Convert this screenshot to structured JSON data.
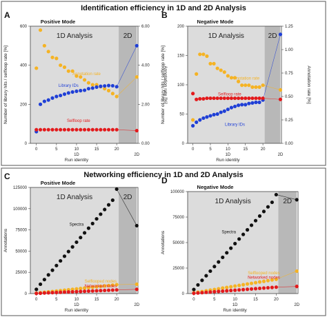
{
  "section_top": {
    "title": "Identification efficiency in 1D and 2D Analysis"
  },
  "section_bottom": {
    "title": "Networking efficiency in 1D and 2D Analysis"
  },
  "colors": {
    "orange": "#f5b324",
    "blue": "#1f3fd6",
    "red": "#e31a1c",
    "black": "#111111",
    "region_1d": "#dcdcdc",
    "region_2d": "#b8b8b8"
  },
  "chart_data": [
    {
      "letter": "A",
      "title": "Positive Mode",
      "type": "scatter",
      "x_ticks": [
        0,
        5,
        10,
        15,
        20
      ],
      "x_sublabels": [
        "1D",
        "2D"
      ],
      "xlabel": "Run identity",
      "ylabel": "Number of library hits / selfloop rate [%]",
      "y2label": "Annotation rate [%]",
      "ylim": [
        0,
        600
      ],
      "y_ticks": [
        0,
        200,
        400,
        600
      ],
      "y2lim": [
        0,
        6
      ],
      "y2_ticks": [
        "0.00",
        "2.00",
        "4.00",
        "6.00"
      ],
      "regions": [
        {
          "label": "1D Analysis",
          "x_from": -1.5,
          "x_to": 20.5
        },
        {
          "label": "2D",
          "x_from": 20.5,
          "x_to": 25
        }
      ],
      "series": [
        {
          "name": "Annotation rate",
          "axis": "right",
          "color": "orange",
          "x": [
            0,
            1,
            2,
            3,
            4,
            5,
            6,
            7,
            8,
            9,
            10,
            11,
            12,
            13,
            14,
            15,
            16,
            17,
            18,
            19,
            20,
            25
          ],
          "y": [
            3.85,
            5.8,
            5.0,
            4.7,
            4.4,
            4.35,
            4.0,
            3.9,
            3.7,
            3.7,
            3.45,
            3.4,
            3.25,
            3.1,
            3.0,
            3.0,
            2.9,
            2.8,
            2.7,
            2.55,
            2.4,
            3.4
          ],
          "label": {
            "x": 12.5,
            "y": 3.5
          }
        },
        {
          "name": "Library IDs",
          "axis": "left",
          "color": "blue",
          "x": [
            0,
            1,
            2,
            3,
            4,
            5,
            6,
            7,
            8,
            9,
            10,
            11,
            12,
            13,
            14,
            15,
            16,
            17,
            18,
            19,
            20,
            25
          ],
          "y": [
            60,
            200,
            215,
            222,
            232,
            240,
            245,
            252,
            258,
            263,
            267,
            270,
            272,
            280,
            283,
            288,
            292,
            294,
            296,
            295,
            290,
            500
          ],
          "label": {
            "x": 8,
            "y": 290
          }
        },
        {
          "name": "Selfloop rate",
          "axis": "left",
          "color": "red",
          "x": [
            0,
            1,
            2,
            3,
            4,
            5,
            6,
            7,
            8,
            9,
            10,
            11,
            12,
            13,
            14,
            15,
            16,
            17,
            18,
            19,
            20,
            25
          ],
          "y": [
            70,
            70,
            70,
            70,
            70,
            70,
            70,
            70,
            70,
            70,
            70,
            70,
            70,
            70,
            70,
            70,
            70,
            70,
            70,
            70,
            70,
            65
          ],
          "label": {
            "x": 10.5,
            "y": 110
          }
        }
      ]
    },
    {
      "letter": "B",
      "title": "Negative Mode",
      "type": "scatter",
      "x_ticks": [
        0,
        5,
        10,
        15,
        20
      ],
      "x_sublabels": [
        "1D",
        "2D"
      ],
      "xlabel": "Run identity",
      "ylabel": "Number of library hits / selfloop rate [%]",
      "y2label": "Annotation rate [%]",
      "ylim": [
        0,
        200
      ],
      "y_ticks": [
        0,
        50,
        100,
        150,
        200
      ],
      "y2lim": [
        0,
        1.25
      ],
      "y2_ticks": [
        "0.00",
        "0.25",
        "0.50",
        "0.75",
        "1.00",
        "1.25"
      ],
      "regions": [
        {
          "label": "1D Analysis",
          "x_from": -1.5,
          "x_to": 20.5
        },
        {
          "label": "2D",
          "x_from": 20.5,
          "x_to": 25
        }
      ],
      "series": [
        {
          "name": "Annotation rate",
          "axis": "right",
          "color": "orange",
          "x": [
            0,
            1,
            2,
            3,
            4,
            5,
            6,
            7,
            8,
            9,
            10,
            11,
            12,
            13,
            14,
            15,
            16,
            17,
            18,
            19,
            20,
            25
          ],
          "y": [
            0.25,
            0.74,
            0.95,
            0.95,
            0.93,
            0.85,
            0.85,
            0.8,
            0.78,
            0.76,
            0.72,
            0.7,
            0.7,
            0.66,
            0.62,
            0.62,
            0.62,
            0.6,
            0.6,
            0.6,
            0.62,
            0.57
          ],
          "label": {
            "x": 15,
            "y": 0.68
          }
        },
        {
          "name": "Library IDs",
          "axis": "left",
          "color": "blue",
          "x": [
            0,
            1,
            2,
            3,
            4,
            5,
            6,
            7,
            8,
            9,
            10,
            11,
            12,
            13,
            14,
            15,
            16,
            17,
            18,
            19,
            20,
            25
          ],
          "y": [
            30,
            36,
            40,
            43,
            45,
            47,
            49,
            50,
            53,
            55,
            58,
            61,
            63,
            65,
            66,
            66,
            68,
            69,
            70,
            70,
            74,
            186
          ],
          "label": {
            "x": 12,
            "y": 30
          }
        },
        {
          "name": "Selfloop rate",
          "axis": "left",
          "color": "red",
          "x": [
            0,
            1,
            2,
            3,
            4,
            5,
            6,
            7,
            8,
            9,
            10,
            11,
            12,
            13,
            14,
            15,
            16,
            17,
            18,
            19,
            20,
            25
          ],
          "y": [
            85,
            75,
            76,
            76,
            77,
            77,
            77,
            77,
            77,
            77,
            77,
            77,
            77,
            77,
            77,
            77,
            77,
            77,
            77,
            77,
            77,
            75
          ],
          "label": {
            "x": 10.5,
            "y": 82
          }
        }
      ]
    },
    {
      "letter": "C",
      "title": "Positive Mode",
      "type": "scatter",
      "x_ticks": [
        0,
        5,
        10,
        15,
        20
      ],
      "x_sublabels": [
        "1D",
        "2D"
      ],
      "xlabel": "Run identity",
      "ylabel": "Annotations",
      "ylim": [
        0,
        125000
      ],
      "y_ticks": [
        0,
        25000,
        50000,
        75000,
        100000,
        125000
      ],
      "y_tick_labels": [
        "0",
        "25000",
        "50000",
        "75000",
        "100000",
        "125000"
      ],
      "regions": [
        {
          "label": "1D Analysis",
          "x_from": -1.5,
          "x_to": 20.5
        },
        {
          "label": "2D",
          "x_from": 20.5,
          "x_to": 25
        }
      ],
      "series": [
        {
          "name": "Spectra",
          "color": "black",
          "x": [
            0,
            1,
            2,
            3,
            4,
            5,
            6,
            7,
            8,
            9,
            10,
            11,
            12,
            13,
            14,
            15,
            16,
            17,
            18,
            19,
            20,
            25
          ],
          "y": [
            5000,
            11000,
            16500,
            22000,
            27500,
            33000,
            38500,
            44000,
            49500,
            55000,
            60500,
            66000,
            71500,
            77000,
            82500,
            88000,
            93500,
            99000,
            104500,
            110000,
            123000,
            80000
          ],
          "label": {
            "x": 10,
            "y": 80000
          }
        },
        {
          "name": "Selflooped nodes",
          "color": "orange",
          "x": [
            0,
            1,
            2,
            3,
            4,
            5,
            6,
            7,
            8,
            9,
            10,
            11,
            12,
            13,
            14,
            15,
            16,
            17,
            18,
            19,
            20,
            25
          ],
          "y": [
            500,
            1000,
            1500,
            2000,
            2500,
            3000,
            3500,
            4000,
            4500,
            5000,
            5500,
            6000,
            6500,
            7000,
            7500,
            8000,
            8500,
            9000,
            9500,
            10000,
            10500,
            11000
          ],
          "label": {
            "x": 16,
            "y": 13000
          }
        },
        {
          "name": "Networked nodes",
          "color": "red",
          "x": [
            0,
            1,
            2,
            3,
            4,
            5,
            6,
            7,
            8,
            9,
            10,
            11,
            12,
            13,
            14,
            15,
            16,
            17,
            18,
            19,
            20,
            25
          ],
          "y": [
            200,
            400,
            700,
            900,
            1100,
            1300,
            1500,
            1700,
            1900,
            2100,
            2300,
            2500,
            2700,
            2900,
            3100,
            3300,
            3500,
            3700,
            3900,
            4100,
            4300,
            5000
          ],
          "label": {
            "x": 16,
            "y": 7500
          }
        }
      ]
    },
    {
      "letter": "D",
      "title": "Negative Mode",
      "type": "scatter",
      "x_ticks": [
        0,
        5,
        10,
        15,
        20
      ],
      "x_sublabels": [
        "1D",
        "2D"
      ],
      "xlabel": "Run identity",
      "ylabel": "Annotations",
      "ylim": [
        0,
        100000
      ],
      "y_ticks": [
        0,
        25000,
        50000,
        75000,
        100000
      ],
      "y_tick_labels": [
        "0",
        "25000",
        "50000",
        "75000",
        "100000"
      ],
      "regions": [
        {
          "label": "1D Analysis",
          "x_from": -1.5,
          "x_to": 20.5
        },
        {
          "label": "2D",
          "x_from": 20.5,
          "x_to": 25
        }
      ],
      "series": [
        {
          "name": "Spectra",
          "color": "black",
          "x": [
            0,
            1,
            2,
            3,
            4,
            5,
            6,
            7,
            8,
            9,
            10,
            11,
            12,
            13,
            14,
            15,
            16,
            17,
            18,
            19,
            20,
            25
          ],
          "y": [
            4000,
            8500,
            13000,
            17500,
            22000,
            26500,
            31000,
            35500,
            40000,
            44500,
            49000,
            53500,
            58000,
            62500,
            67000,
            71500,
            76000,
            80500,
            85000,
            89500,
            97000,
            92000
          ],
          "label": {
            "x": 8.5,
            "y": 59000
          }
        },
        {
          "name": "Selflooped nodes",
          "color": "orange",
          "x": [
            0,
            1,
            2,
            3,
            4,
            5,
            6,
            7,
            8,
            9,
            10,
            11,
            12,
            13,
            14,
            15,
            16,
            17,
            18,
            19,
            20,
            25
          ],
          "y": [
            700,
            1400,
            2000,
            2700,
            3400,
            4000,
            4700,
            5400,
            6000,
            6700,
            7400,
            8000,
            8700,
            9400,
            10000,
            10700,
            11400,
            12000,
            12700,
            13400,
            14000,
            22000
          ],
          "label": {
            "x": 17,
            "y": 19000
          }
        },
        {
          "name": "Networked nodes",
          "color": "red",
          "x": [
            0,
            1,
            2,
            3,
            4,
            5,
            6,
            7,
            8,
            9,
            10,
            11,
            12,
            13,
            14,
            15,
            16,
            17,
            18,
            19,
            20,
            25
          ],
          "y": [
            300,
            600,
            900,
            1200,
            1500,
            1800,
            2100,
            2400,
            2700,
            3000,
            3300,
            3600,
            3900,
            4200,
            4500,
            4800,
            5100,
            5400,
            5700,
            6000,
            6300,
            7000
          ],
          "label": {
            "x": 17,
            "y": 14500
          }
        }
      ]
    }
  ]
}
